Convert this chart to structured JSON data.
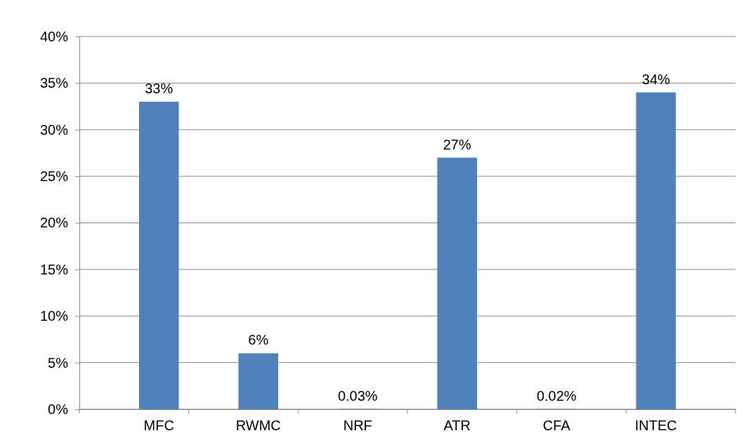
{
  "chart_data": {
    "type": "bar",
    "categories": [
      "MFC",
      "RWMC",
      "NRF",
      "ATR",
      "CFA",
      "INTEC"
    ],
    "values": [
      33,
      6,
      0.03,
      27,
      0.02,
      34
    ],
    "value_labels": [
      "33%",
      "6%",
      "0.03%",
      "27%",
      "0.02%",
      "34%"
    ],
    "color": "#4f81bd",
    "ylim": [
      0,
      40
    ],
    "yticks": [
      {
        "value": 0,
        "label": "0%"
      },
      {
        "value": 5,
        "label": "5%"
      },
      {
        "value": 10,
        "label": "10%"
      },
      {
        "value": 15,
        "label": "15%"
      },
      {
        "value": 20,
        "label": "20%"
      },
      {
        "value": 25,
        "label": "25%"
      },
      {
        "value": 30,
        "label": "30%"
      },
      {
        "value": 35,
        "label": "35%"
      },
      {
        "value": 40,
        "label": "40%"
      }
    ],
    "grid": "y"
  }
}
